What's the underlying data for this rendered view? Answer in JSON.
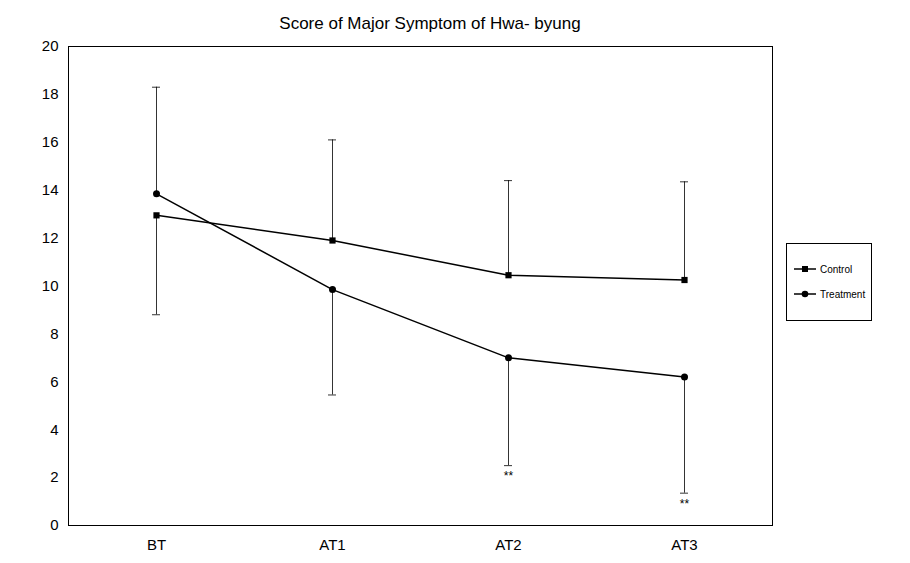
{
  "chart_data": {
    "type": "line",
    "title": "Score of Major Symptom of Hwa- byung",
    "categories": [
      "BT",
      "AT1",
      "AT2",
      "AT3"
    ],
    "series": [
      {
        "name": "Control",
        "color": "#000000",
        "marker": "square",
        "line_style": "solid",
        "values": [
          12.95,
          11.9,
          10.45,
          10.25
        ],
        "error_upper": [
          null,
          4.2,
          3.95,
          4.1
        ],
        "error_lower": [
          4.15,
          null,
          null,
          null
        ]
      },
      {
        "name": "Treatment",
        "color": "#000000",
        "marker": "circle",
        "line_style": "solid",
        "values": [
          13.85,
          9.85,
          7.0,
          6.2
        ],
        "error_upper": [
          4.45,
          null,
          null,
          null
        ],
        "error_lower": [
          null,
          4.4,
          4.5,
          4.85
        ]
      }
    ],
    "annotations": [
      {
        "x": "AT2",
        "text": "**"
      },
      {
        "x": "AT3",
        "text": "**"
      }
    ],
    "ylim": [
      0,
      20
    ],
    "yticks": [
      0,
      2,
      4,
      6,
      8,
      10,
      12,
      14,
      16,
      18,
      20
    ],
    "grid": false,
    "legend": "right"
  }
}
